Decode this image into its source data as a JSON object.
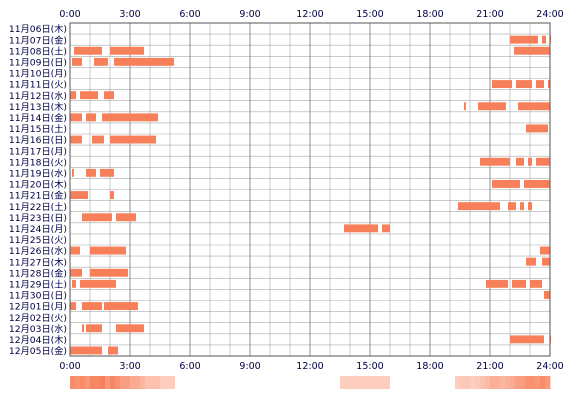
{
  "chart_data": {
    "type": "heatmap",
    "title": "",
    "xlabel": "",
    "ylabel": "",
    "xlim": [
      0,
      24
    ],
    "x_ticks": [
      "0:00",
      "3:00",
      "6:00",
      "9:00",
      "12:00",
      "15:00",
      "18:00",
      "21:00",
      "24:00"
    ],
    "grid": true,
    "colors": {
      "bar": "#f7805a",
      "grid": "#888888",
      "frame": "#555555",
      "text": "#000044",
      "summary_low": "#fff0ea",
      "summary_high": "#f7805a"
    },
    "rows": [
      {
        "label": "11月06日(木)",
        "segments": []
      },
      {
        "label": "11月07日(金)",
        "segments": [
          [
            22.0,
            23.4
          ],
          [
            23.6,
            23.8
          ],
          [
            24.0,
            24.0
          ]
        ]
      },
      {
        "label": "11月08日(土)",
        "segments": [
          [
            0.2,
            1.6
          ],
          [
            2.0,
            3.7
          ],
          [
            22.2,
            24.0
          ]
        ]
      },
      {
        "label": "11月09日(日)",
        "segments": [
          [
            0.1,
            0.6
          ],
          [
            1.2,
            1.9
          ],
          [
            2.2,
            5.2
          ]
        ]
      },
      {
        "label": "11月10日(月)",
        "segments": []
      },
      {
        "label": "11月11日(火)",
        "segments": [
          [
            21.1,
            22.1
          ],
          [
            22.3,
            23.1
          ],
          [
            23.3,
            23.7
          ],
          [
            23.9,
            24.0
          ]
        ]
      },
      {
        "label": "11月12日(水)",
        "segments": [
          [
            0.0,
            0.3
          ],
          [
            0.5,
            1.4
          ],
          [
            1.7,
            2.2
          ]
        ]
      },
      {
        "label": "11月13日(木)",
        "segments": [
          [
            19.7,
            19.8
          ],
          [
            20.4,
            21.8
          ],
          [
            22.4,
            24.0
          ]
        ]
      },
      {
        "label": "11月14日(金)",
        "segments": [
          [
            0.0,
            0.6
          ],
          [
            0.8,
            1.3
          ],
          [
            1.6,
            4.4
          ]
        ]
      },
      {
        "label": "11月15日(土)",
        "segments": [
          [
            22.8,
            23.9
          ]
        ]
      },
      {
        "label": "11月16日(日)",
        "segments": [
          [
            0.0,
            0.6
          ],
          [
            1.1,
            1.7
          ],
          [
            2.0,
            4.3
          ]
        ]
      },
      {
        "label": "11月17日(月)",
        "segments": []
      },
      {
        "label": "11月18日(火)",
        "segments": [
          [
            20.5,
            22.0
          ],
          [
            22.3,
            22.7
          ],
          [
            22.9,
            23.1
          ],
          [
            23.3,
            24.0
          ]
        ]
      },
      {
        "label": "11月19日(水)",
        "segments": [
          [
            0.1,
            0.2
          ],
          [
            0.8,
            1.3
          ],
          [
            1.5,
            2.2
          ]
        ]
      },
      {
        "label": "11月20日(木)",
        "segments": [
          [
            21.1,
            22.5
          ],
          [
            22.7,
            24.0
          ]
        ]
      },
      {
        "label": "11月21日(金)",
        "segments": [
          [
            0.0,
            0.9
          ],
          [
            2.0,
            2.2
          ]
        ]
      },
      {
        "label": "11月22日(土)",
        "segments": [
          [
            19.4,
            21.5
          ],
          [
            21.9,
            22.3
          ],
          [
            22.5,
            22.7
          ],
          [
            22.9,
            23.1
          ]
        ]
      },
      {
        "label": "11月23日(日)",
        "segments": [
          [
            0.6,
            2.1
          ],
          [
            2.3,
            3.3
          ]
        ]
      },
      {
        "label": "11月24日(月)",
        "segments": [
          [
            13.7,
            15.4
          ],
          [
            15.6,
            16.0
          ]
        ]
      },
      {
        "label": "11月25日(火)",
        "segments": []
      },
      {
        "label": "11月26日(水)",
        "segments": [
          [
            0.0,
            0.5
          ],
          [
            1.0,
            2.8
          ],
          [
            23.5,
            24.0
          ]
        ]
      },
      {
        "label": "11月27日(木)",
        "segments": [
          [
            22.8,
            23.3
          ],
          [
            23.6,
            24.0
          ]
        ]
      },
      {
        "label": "11月28日(金)",
        "segments": [
          [
            0.0,
            0.6
          ],
          [
            1.0,
            2.9
          ]
        ]
      },
      {
        "label": "11月29日(土)",
        "segments": [
          [
            0.1,
            0.3
          ],
          [
            0.5,
            2.3
          ],
          [
            20.8,
            21.9
          ],
          [
            22.1,
            22.8
          ],
          [
            23.0,
            23.6
          ]
        ]
      },
      {
        "label": "11月30日(日)",
        "segments": [
          [
            23.7,
            24.0
          ]
        ]
      },
      {
        "label": "12月01日(月)",
        "segments": [
          [
            0.0,
            0.3
          ],
          [
            0.6,
            1.6
          ],
          [
            1.7,
            3.4
          ]
        ]
      },
      {
        "label": "12月02日(火)",
        "segments": []
      },
      {
        "label": "12月03日(水)",
        "segments": [
          [
            0.6,
            0.7
          ],
          [
            0.8,
            1.6
          ],
          [
            2.3,
            3.7
          ]
        ]
      },
      {
        "label": "12月04日(木)",
        "segments": [
          [
            22.0,
            23.7
          ],
          [
            24.0,
            24.0
          ]
        ]
      },
      {
        "label": "12月05日(金)",
        "segments": [
          [
            0.0,
            1.6
          ],
          [
            1.9,
            2.4
          ]
        ]
      }
    ]
  }
}
